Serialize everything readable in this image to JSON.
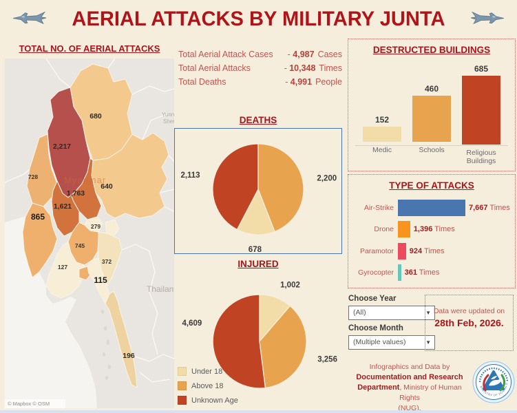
{
  "header": {
    "title": "AERIAL ATTACKS BY MILITARY JUNTA"
  },
  "map": {
    "title": "TOTAL NO. OF AERIAL ATTACKS",
    "country_label": "Myanmar",
    "overlay_labels": {
      "thailand": "Thailand",
      "yunnan_1": "Yunn",
      "yunnan_2": "Shen"
    },
    "attribution": "© Mapbox  © OSM",
    "regions": {
      "kachin": "680",
      "sagaing": "2,217",
      "chin": "728",
      "shan": "640",
      "mandalay": "1,763",
      "magway": "1,621",
      "rakhine": "865",
      "naypyitaw": "279",
      "bago": "745",
      "ayeyarwady": "127",
      "kayin": "372",
      "mon": "115",
      "tanintharyi": "196"
    }
  },
  "totals": {
    "rows": [
      {
        "label": "Total Aerial Attack Cases",
        "dash": "-",
        "value": "4,987",
        "unit": "Cases"
      },
      {
        "label": "Total Aerial Attacks",
        "dash": "-",
        "value": "10,348",
        "unit": "Times"
      },
      {
        "label": "Total Deaths",
        "dash": "-",
        "value": "4,991",
        "unit": "People"
      }
    ]
  },
  "chart_data": [
    {
      "id": "deaths",
      "type": "pie",
      "title": "DEATHS",
      "labels": [
        "Above 18",
        "Under 18",
        "Unknown Age"
      ],
      "values": [
        2200,
        678,
        2113
      ],
      "values_display": [
        "2,200",
        "678",
        "2,113"
      ],
      "colors": [
        "#e8a34f",
        "#f2dca8",
        "#c04424"
      ],
      "start_angle": 0,
      "label_angles": [
        79,
        183,
        284
      ],
      "legend_position": "none"
    },
    {
      "id": "injured",
      "type": "pie",
      "title": "INJURED",
      "labels": [
        "Under 18",
        "Above 18",
        "Unknown Age"
      ],
      "values": [
        1002,
        3256,
        4609
      ],
      "values_display": [
        "1,002",
        "3,256",
        "4,609"
      ],
      "colors": [
        "#f2dca8",
        "#e8a34f",
        "#c04424"
      ],
      "start_angle": 0,
      "label_angles": [
        20,
        107,
        288
      ],
      "legend": [
        {
          "label": "Under 18",
          "color": "#f2dca8"
        },
        {
          "label": "Above 18",
          "color": "#e8a34f"
        },
        {
          "label": "Unknown Age",
          "color": "#c04424"
        }
      ],
      "legend_position": "bottom-left"
    },
    {
      "id": "buildings",
      "type": "bar",
      "title": "DESTRUCTED BUILDINGS",
      "categories": [
        "Medic",
        "Schools",
        "Religious Buildings"
      ],
      "values": [
        152,
        460,
        685
      ],
      "values_display": [
        "152",
        "460",
        "685"
      ],
      "colors": [
        "#f2dca8",
        "#e8a34f",
        "#c04424"
      ],
      "ylim": [
        0,
        700
      ],
      "grid": false
    },
    {
      "id": "attack_types",
      "type": "bar",
      "orientation": "horizontal",
      "title": "TYPE OF ATTACKS",
      "categories": [
        "Air-Strike",
        "Drone",
        "Paramotor",
        "Gyrocopter"
      ],
      "values": [
        7667,
        1396,
        924,
        361
      ],
      "values_display": [
        "7,667",
        "1,396",
        "924",
        "361"
      ],
      "unit": "Times",
      "colors": [
        "#4a76b0",
        "#f8941d",
        "#ee4a5e",
        "#66c6bb"
      ],
      "xlim": [
        0,
        7667
      ]
    }
  ],
  "filters": {
    "year_label": "Choose Year",
    "year_value": "(All)",
    "month_label": "Choose Month",
    "month_value": "(Multiple values)"
  },
  "updated": {
    "line1": "Data were updated on",
    "line2": "28th Feb, 2026."
  },
  "credits": {
    "line1": "Infographics and Data by",
    "line2": "Documentation and Research",
    "line3_bold": "Department",
    "line3_rest": ", Ministry of Human Rights",
    "line4": "(NUG)."
  },
  "logo": {
    "ring_text": "MINISTRY OF HUMAN RIGHTS"
  }
}
